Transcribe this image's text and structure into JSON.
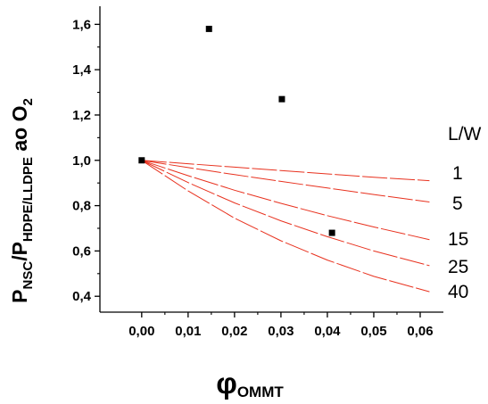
{
  "chart_data": {
    "type": "scatter",
    "title": "",
    "xlabel": {
      "main": "φ",
      "sub": "OMMT"
    },
    "ylabel": {
      "p1": "P",
      "sub1": "NSC",
      "p2": "/P",
      "sub2": "HDPE/LLDPE",
      "p3": " ao O",
      "sub3": "2"
    },
    "xlim": [
      -0.009,
      0.065
    ],
    "ylim": [
      0.33,
      1.68
    ],
    "xticks": [
      0.0,
      0.01,
      0.02,
      0.03,
      0.04,
      0.05,
      0.06
    ],
    "xtick_labels": [
      "0,00",
      "0,01",
      "0,02",
      "0,03",
      "0,04",
      "0,05",
      "0,06"
    ],
    "yticks": [
      0.4,
      0.6,
      0.8,
      1.0,
      1.2,
      1.4,
      1.6
    ],
    "ytick_labels": [
      "0,4",
      "0,6",
      "0,8",
      "1,0",
      "1,2",
      "1,4",
      "1,6"
    ],
    "grid": false,
    "points": {
      "x": [
        0.0,
        0.0145,
        0.0302,
        0.041
      ],
      "y": [
        1.0,
        1.58,
        1.27,
        0.68
      ],
      "color": "#000000"
    },
    "legend_title": "L/W",
    "series": [
      {
        "name": "1",
        "x": [
          0.0,
          0.01,
          0.02,
          0.03,
          0.04,
          0.05,
          0.062
        ],
        "y": [
          1.0,
          0.985,
          0.97,
          0.955,
          0.94,
          0.925,
          0.91
        ]
      },
      {
        "name": "5",
        "x": [
          0.0,
          0.01,
          0.02,
          0.03,
          0.04,
          0.05,
          0.062
        ],
        "y": [
          1.0,
          0.968,
          0.937,
          0.907,
          0.878,
          0.849,
          0.816
        ]
      },
      {
        "name": "15",
        "x": [
          0.0,
          0.01,
          0.02,
          0.03,
          0.04,
          0.05,
          0.062
        ],
        "y": [
          1.0,
          0.932,
          0.868,
          0.81,
          0.756,
          0.706,
          0.65
        ]
      },
      {
        "name": "25",
        "x": [
          0.0,
          0.01,
          0.02,
          0.03,
          0.04,
          0.05,
          0.062
        ],
        "y": [
          1.0,
          0.902,
          0.812,
          0.733,
          0.663,
          0.6,
          0.535
        ]
      },
      {
        "name": "40",
        "x": [
          0.0,
          0.01,
          0.02,
          0.03,
          0.04,
          0.05,
          0.062
        ],
        "y": [
          1.0,
          0.865,
          0.745,
          0.645,
          0.56,
          0.488,
          0.42
        ]
      }
    ],
    "line_color": "#e8311e"
  }
}
